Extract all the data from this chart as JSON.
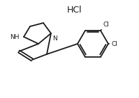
{
  "background_color": "#ffffff",
  "line_color": "#1a1a1a",
  "line_width": 1.3,
  "HCl_text": "HCl",
  "HCl_fontsize": 9,
  "NH_label": "NH",
  "N_label": "N",
  "Cl1_label": "Cl",
  "Cl2_label": "Cl",
  "figsize": [
    1.99,
    1.41
  ],
  "dpi": 100
}
